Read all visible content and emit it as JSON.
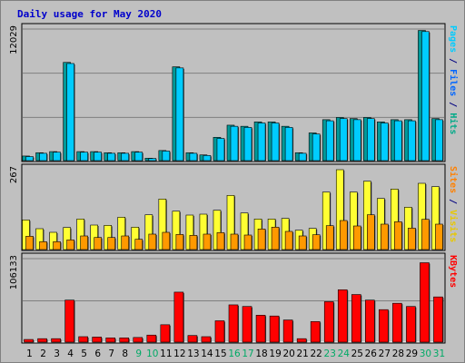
{
  "chart_data": {
    "type": "bar",
    "title": "Daily usage for May 2020",
    "categories": [
      "1",
      "2",
      "3",
      "4",
      "5",
      "6",
      "7",
      "8",
      "9",
      "10",
      "11",
      "12",
      "13",
      "14",
      "15",
      "16",
      "17",
      "18",
      "19",
      "20",
      "21",
      "22",
      "23",
      "24",
      "25",
      "26",
      "27",
      "28",
      "29",
      "30",
      "31"
    ],
    "weekend_days": [
      "9",
      "10",
      "16",
      "17",
      "23",
      "24",
      "30",
      "31"
    ],
    "panels": [
      {
        "name": "pages-files-hits",
        "ymax_label": "12029",
        "ymax": 12029,
        "side_labels": [
          {
            "text": "Pages",
            "color": "#00ccff"
          },
          {
            "text": " / ",
            "color": "#000080"
          },
          {
            "text": "Files",
            "color": "#0066ff"
          },
          {
            "text": " / ",
            "color": "#000080"
          },
          {
            "text": "Hits",
            "color": "#00aa88"
          }
        ],
        "series": [
          {
            "name": "Hits",
            "color": "#009999",
            "values": [
              500,
              800,
              900,
              9000,
              900,
              900,
              800,
              800,
              900,
              300,
              1000,
              8600,
              800,
              600,
              2200,
              3300,
              3200,
              3600,
              3600,
              3200,
              800,
              2600,
              3800,
              4000,
              3900,
              4000,
              3600,
              3800,
              3800,
              11900,
              3900
            ]
          },
          {
            "name": "Files",
            "color": "#00ccff",
            "values": [
              450,
              750,
              850,
              8900,
              850,
              850,
              750,
              750,
              850,
              280,
              950,
              8500,
              750,
              550,
              2100,
              3200,
              3100,
              3500,
              3500,
              3100,
              750,
              2500,
              3700,
              3900,
              3800,
              3900,
              3500,
              3700,
              3700,
              11800,
              3800
            ]
          }
        ]
      },
      {
        "name": "visits-sites",
        "ymax_label": "267",
        "ymax": 267,
        "side_labels": [
          {
            "text": "Sites",
            "color": "#ff8000"
          },
          {
            "text": " / ",
            "color": "#000080"
          },
          {
            "text": "Visits",
            "color": "#e8c800"
          }
        ],
        "series": [
          {
            "name": "Visits",
            "color": "#ffff33",
            "values": [
              101,
              72,
              60,
              76,
              104,
              84,
              83,
              110,
              77,
              118,
              170,
              130,
              117,
              120,
              133,
              182,
              124,
              104,
              104,
              106,
              67,
              73,
              193,
              267,
              193,
              229,
              172,
              203,
              143,
              222,
              211
            ]
          },
          {
            "name": "Sites",
            "color": "#ff9900",
            "values": [
              47,
              29,
              29,
              35,
              48,
              43,
              43,
              48,
              37,
              54,
              60,
              53,
              50,
              54,
              59,
              54,
              51,
              71,
              77,
              63,
              48,
              52,
              82,
              99,
              81,
              118,
              87,
              95,
              74,
              103,
              87
            ]
          }
        ]
      },
      {
        "name": "kbytes",
        "ymax_label": "106133",
        "ymax": 106133,
        "side_labels": [
          {
            "text": "KBytes",
            "color": "#ff0000"
          }
        ],
        "series": [
          {
            "name": "KBytes",
            "color": "#ff0000",
            "values": [
              4500,
              5500,
              5500,
              54000,
              8000,
              7500,
              6500,
              6500,
              7000,
              10000,
              23000,
              64000,
              9500,
              8000,
              28000,
              48000,
              46000,
              35000,
              34000,
              29000,
              5500,
              27000,
              52000,
              67000,
              61000,
              54000,
              42000,
              50000,
              46000,
              101000,
              58000
            ]
          }
        ]
      }
    ]
  }
}
